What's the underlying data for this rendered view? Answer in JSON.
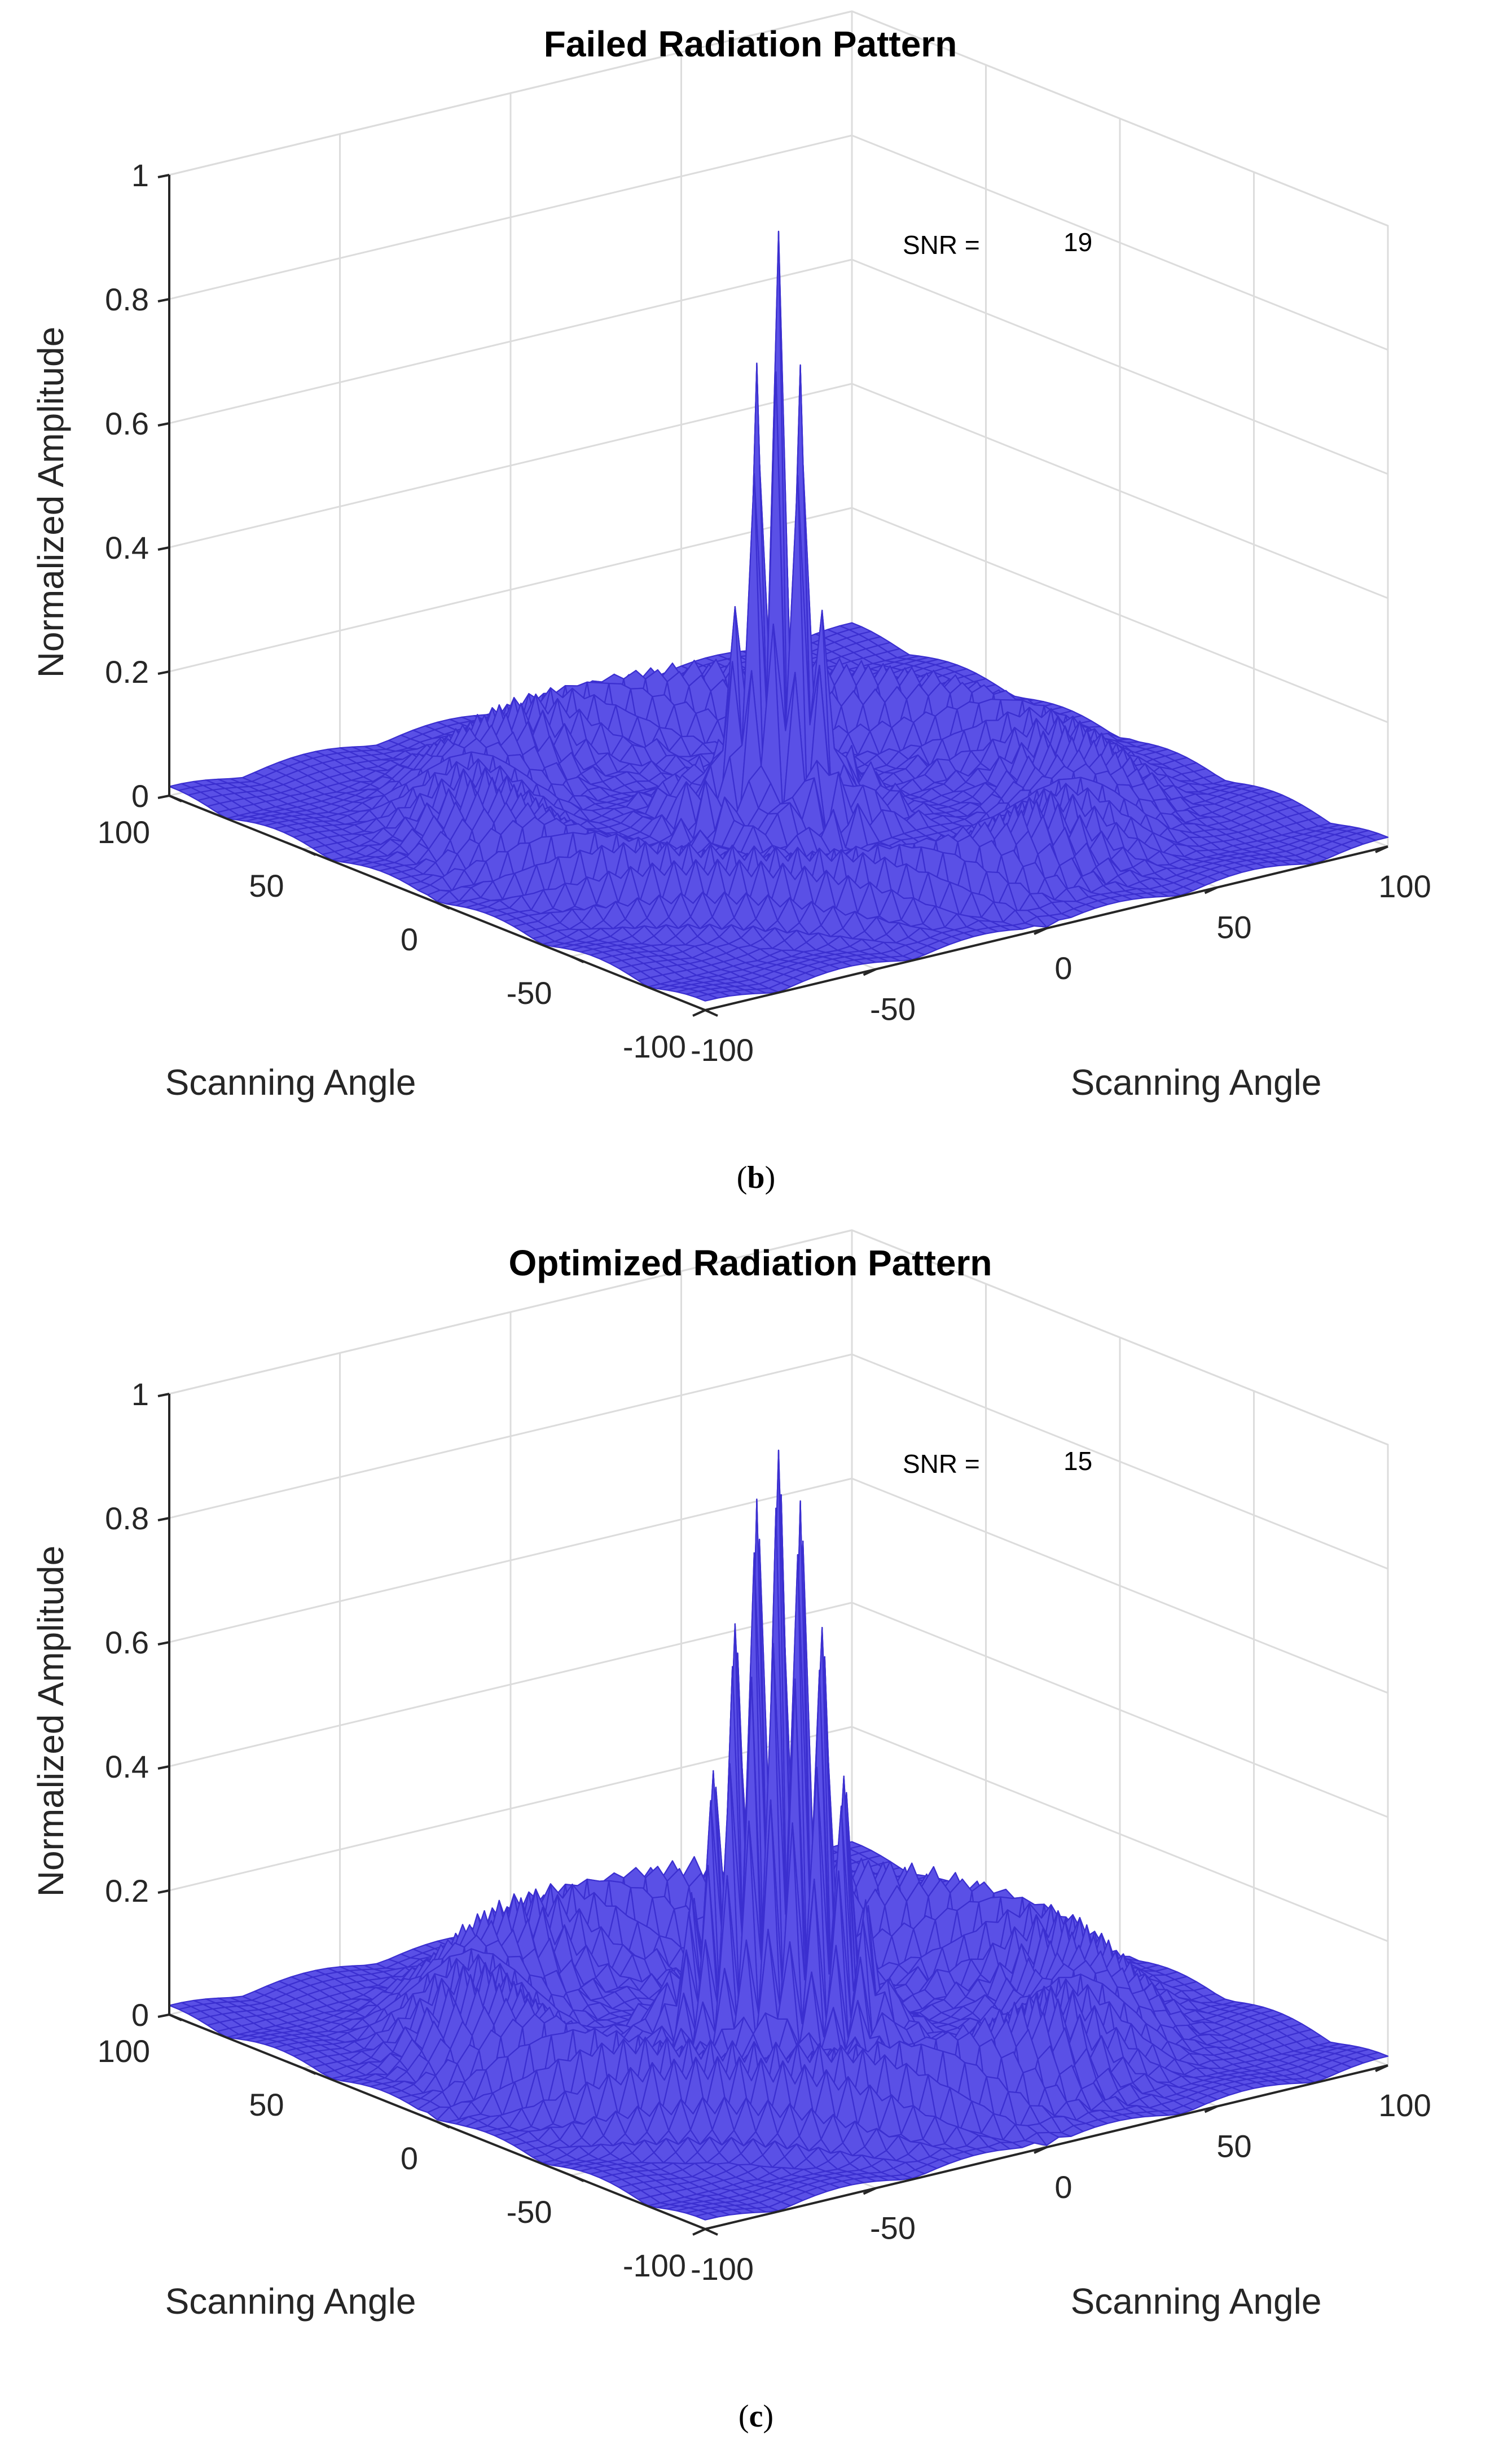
{
  "chart_data": [
    {
      "type": "surface",
      "title": "Failed Radiation Pattern",
      "xlabel": "Scanning Angle",
      "ylabel": "Scanning Angle",
      "zlabel": "Normalized Amplitude",
      "xlim": [
        -100,
        100
      ],
      "ylim": [
        -100,
        100
      ],
      "zlim": [
        0,
        1
      ],
      "x_ticks": [
        "-100",
        "-50",
        "0",
        "50",
        "100"
      ],
      "y_ticks": [
        "-100",
        "-50",
        "0",
        "50",
        "100"
      ],
      "z_ticks": [
        "0",
        "0.2",
        "0.4",
        "0.6",
        "0.8",
        "1"
      ],
      "snr_label": "SNR =",
      "snr_value": "19",
      "peak_amplitude": 0.95,
      "sidelobe_level": 0.2,
      "main_beam_center": [
        0,
        0
      ],
      "main_beam_width_deg": 20,
      "surface_color": "#3b2fd0",
      "caption_letter": "b"
    },
    {
      "type": "surface",
      "title": "Optimized Radiation Pattern",
      "xlabel": "Scanning Angle",
      "ylabel": "Scanning Angle",
      "zlabel": "Normalized Amplitude",
      "xlim": [
        -100,
        100
      ],
      "ylim": [
        -100,
        100
      ],
      "zlim": [
        0,
        1
      ],
      "x_ticks": [
        "-100",
        "-50",
        "0",
        "50",
        "100"
      ],
      "y_ticks": [
        "-100",
        "-50",
        "0",
        "50",
        "100"
      ],
      "z_ticks": [
        "0",
        "0.2",
        "0.4",
        "0.6",
        "0.8",
        "1"
      ],
      "snr_label": "SNR =",
      "snr_value": "15",
      "peak_amplitude": 0.95,
      "sidelobe_level": 0.27,
      "main_beam_center": [
        0,
        0
      ],
      "main_beam_width_deg": 34,
      "surface_color": "#3b2fd0",
      "caption_letter": "c"
    }
  ]
}
